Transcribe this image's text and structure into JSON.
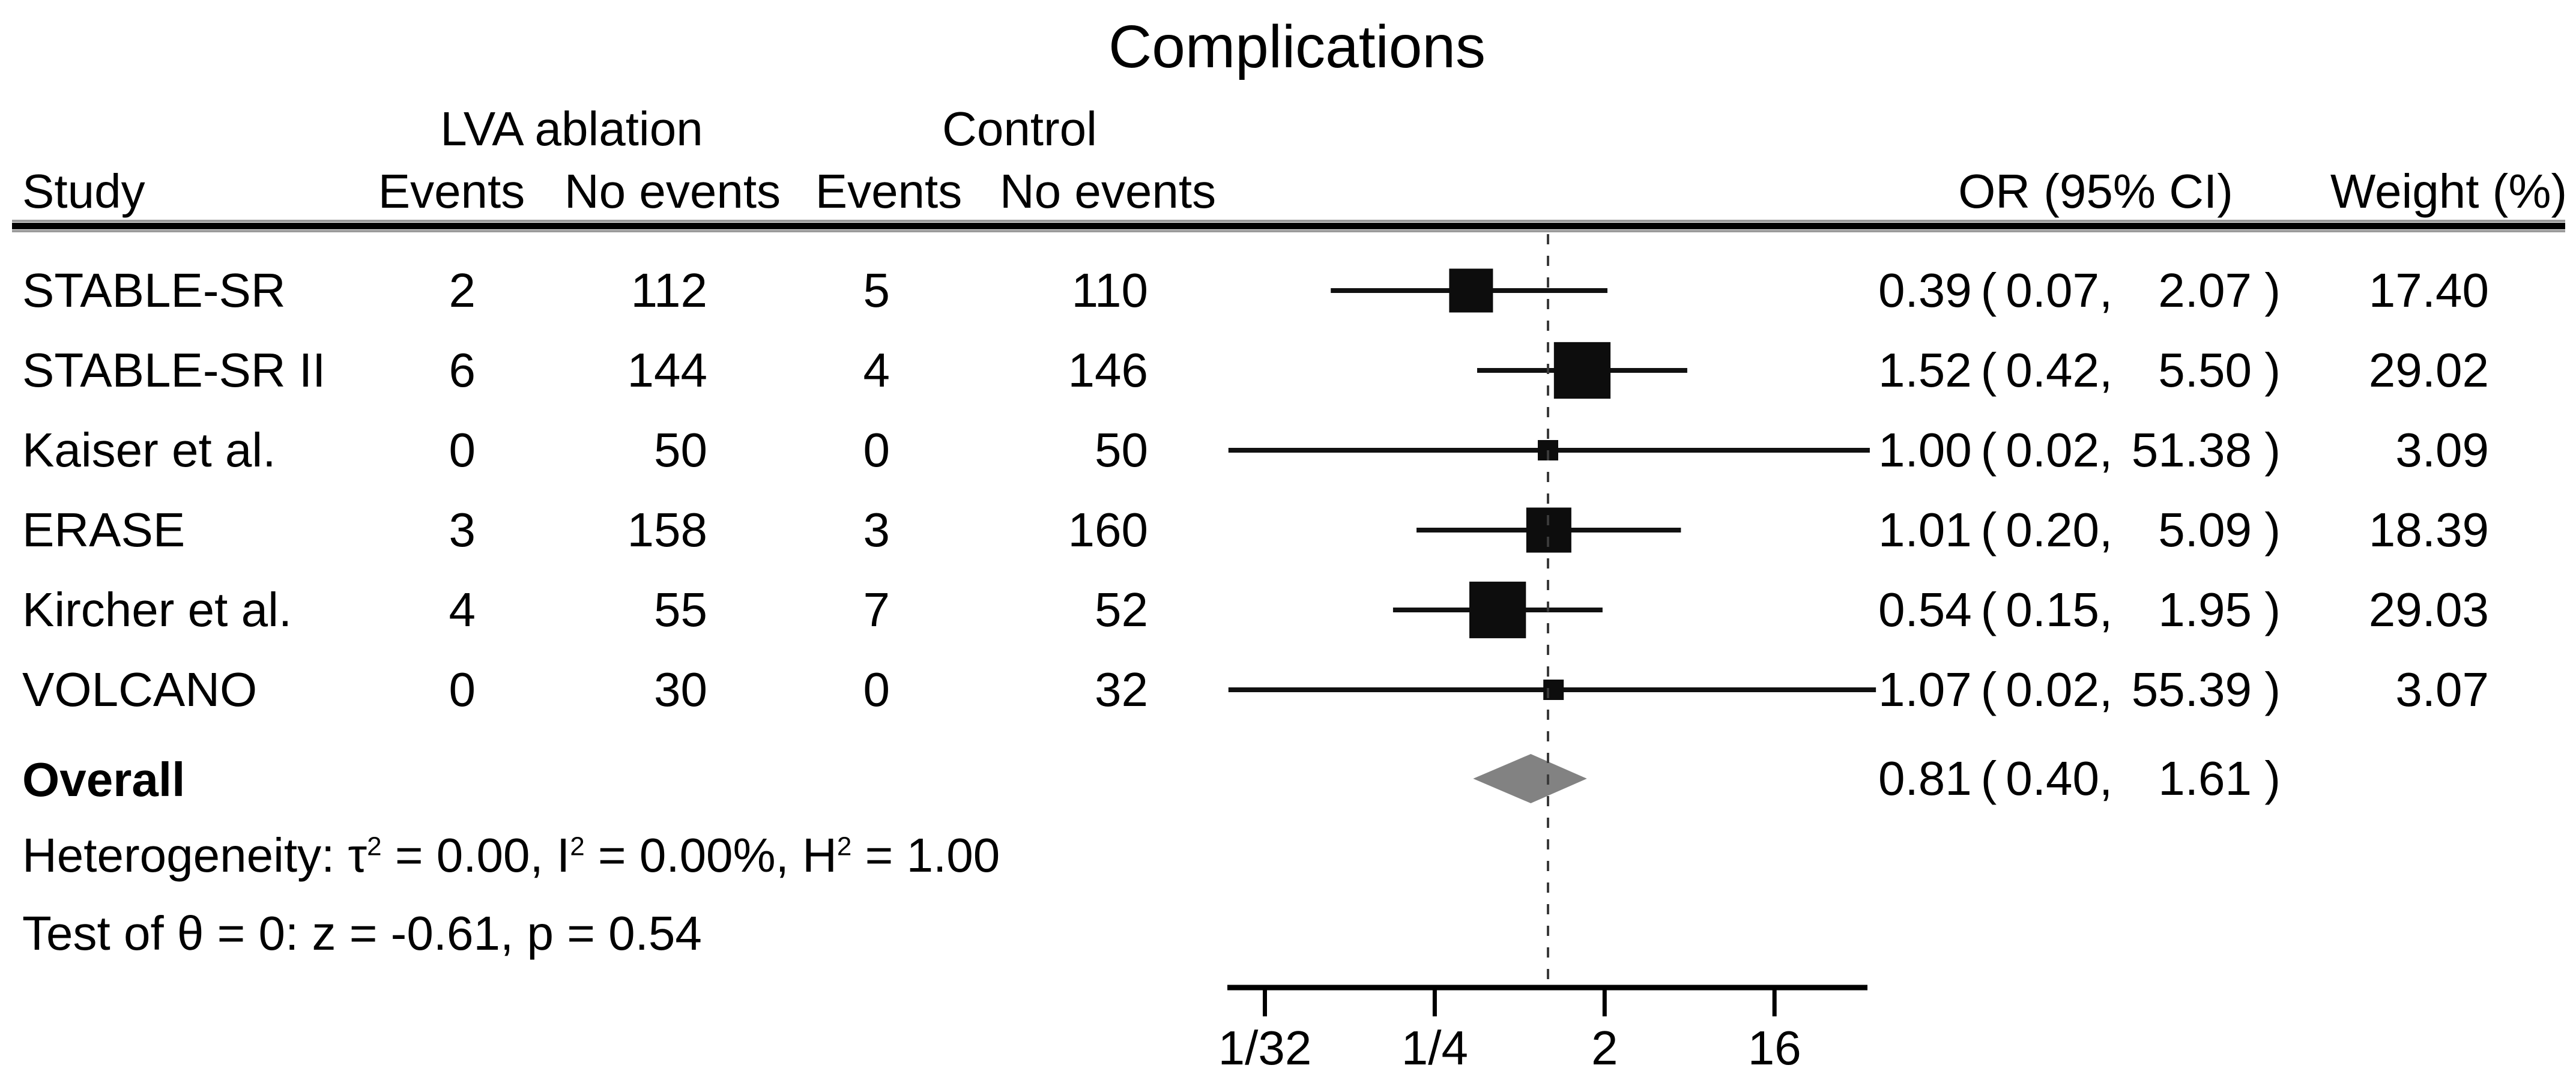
{
  "title": "Complications",
  "table": {
    "group_headers": {
      "treatment": "LVA ablation",
      "control": "Control"
    },
    "col_headers": {
      "study": "Study",
      "events": "Events",
      "no_events": "No events",
      "or_ci": "OR (95% CI)",
      "weight": "Weight (%)"
    }
  },
  "chart_data": {
    "type": "forest",
    "title": "Complications",
    "x_scale": "log2",
    "grid": false,
    "null_line_value": 1,
    "axis_ticks": [
      {
        "label": "1/32",
        "value": 0.03125
      },
      {
        "label": "1/4",
        "value": 0.25
      },
      {
        "label": "2",
        "value": 2
      },
      {
        "label": "16",
        "value": 16
      }
    ],
    "axis_range_approx": [
      0.02,
      50
    ],
    "studies": [
      {
        "study": "STABLE-SR",
        "t_events": "2",
        "t_no_events": "112",
        "c_events": "5",
        "c_no_events": "110",
        "or": 0.39,
        "ci_low": 0.07,
        "ci_high": 2.07,
        "weight": 17.4
      },
      {
        "study": "STABLE-SR II",
        "t_events": "6",
        "t_no_events": "144",
        "c_events": "4",
        "c_no_events": "146",
        "or": 1.52,
        "ci_low": 0.42,
        "ci_high": 5.5,
        "weight": 29.02
      },
      {
        "study": "Kaiser et al.",
        "t_events": "0",
        "t_no_events": "50",
        "c_events": "0",
        "c_no_events": "50",
        "or": 1.0,
        "ci_low": 0.02,
        "ci_high": 51.38,
        "weight": 3.09
      },
      {
        "study": "ERASE",
        "t_events": "3",
        "t_no_events": "158",
        "c_events": "3",
        "c_no_events": "160",
        "or": 1.01,
        "ci_low": 0.2,
        "ci_high": 5.09,
        "weight": 18.39
      },
      {
        "study": "Kircher et al.",
        "t_events": "4",
        "t_no_events": "55",
        "c_events": "7",
        "c_no_events": "52",
        "or": 0.54,
        "ci_low": 0.15,
        "ci_high": 1.95,
        "weight": 29.03
      },
      {
        "study": "VOLCANO",
        "t_events": "0",
        "t_no_events": "30",
        "c_events": "0",
        "c_no_events": "32",
        "or": 1.07,
        "ci_low": 0.02,
        "ci_high": 55.39,
        "weight": 3.07
      }
    ],
    "overall": {
      "label": "Overall",
      "or": 0.81,
      "ci_low": 0.4,
      "ci_high": 1.61
    },
    "heterogeneity_segments": [
      {
        "text": "Heterogeneity: τ",
        "sup": false
      },
      {
        "text": "2",
        "sup": true
      },
      {
        "text": " = 0.00, I",
        "sup": false
      },
      {
        "text": "2",
        "sup": true
      },
      {
        "text": " = 0.00%, H",
        "sup": false
      },
      {
        "text": "2",
        "sup": true
      },
      {
        "text": " = 1.00",
        "sup": false
      }
    ],
    "test_line": "Test of θ = 0: z = -0.61, p = 0.54",
    "colors": {
      "marker": "#0d0d0d",
      "ci_line": "#111111",
      "diamond": "#828282",
      "null_line": "#3a3a3a",
      "axis": "#000000"
    }
  }
}
